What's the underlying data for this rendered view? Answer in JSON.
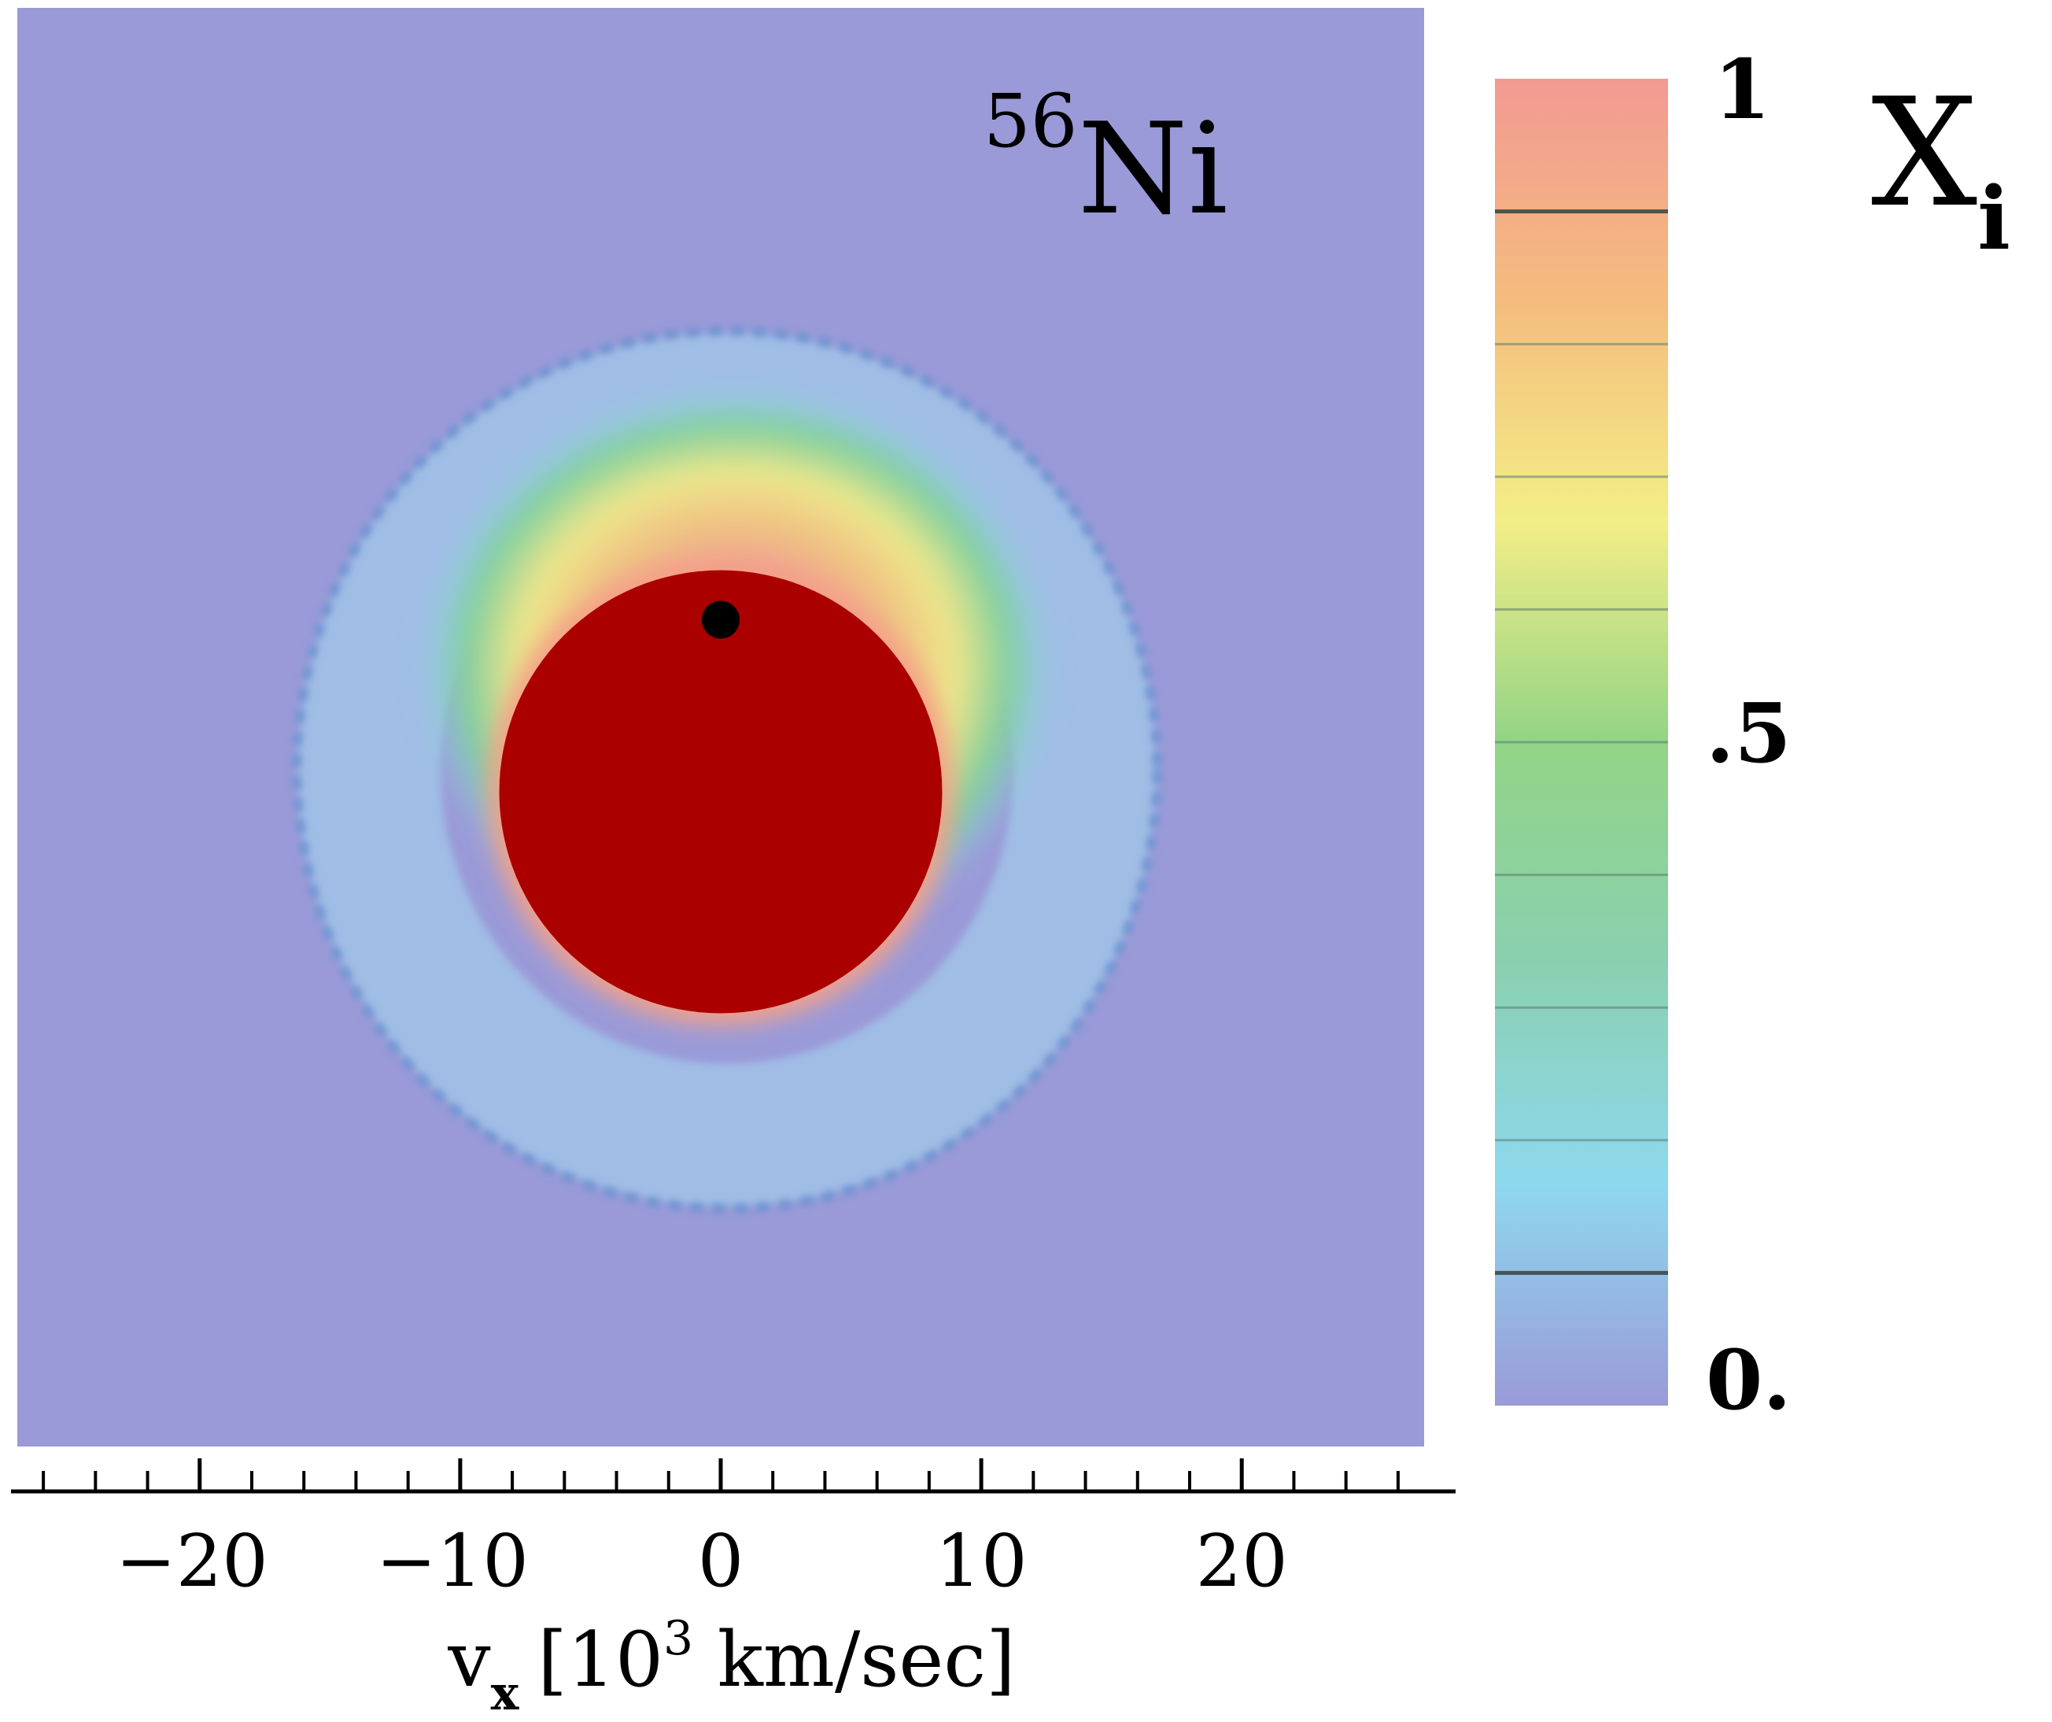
{
  "chart_data": {
    "type": "heatmap",
    "title": "56Ni",
    "title_parts": {
      "superscript": "56",
      "element": "Ni"
    },
    "xlabel": "v",
    "xlabel_parts": {
      "symbol": "v",
      "subscript": "x",
      "open": "[10",
      "exponent": "3",
      "close": " km/sec]"
    },
    "xlim": [
      -27,
      27
    ],
    "x_tick_major_step": 10,
    "x_tick_minor_step": 2,
    "x_tick_values": [
      -20,
      -10,
      0,
      10,
      20
    ],
    "x_tick_labels": [
      "−20",
      "−10",
      "0",
      "10",
      "20"
    ],
    "colorbar": {
      "label": "X",
      "label_subscript": "i",
      "range": [
        0,
        1
      ],
      "tick_values": [
        1,
        0.5,
        0
      ],
      "tick_labels": [
        "1",
        ".5",
        "0."
      ],
      "levels": 10
    },
    "field": {
      "background_value": 0,
      "core": {
        "center": [
          0,
          0
        ],
        "radius": 8.5,
        "value": 1
      },
      "plume": {
        "direction": "up",
        "peak_value": 1
      },
      "shell": {
        "inner_radius": 11,
        "outer_radius": 16.5,
        "value": 0.15
      },
      "marker": {
        "x": 0,
        "y": 6.6
      }
    }
  },
  "colors": {
    "background": "#9a9ad8",
    "core": "#aa0000",
    "marker": "#000000",
    "axis": "#000000",
    "colorbar_stops": [
      "#9a9ad8",
      "#8ed8ee",
      "#8ad0b0",
      "#92d486",
      "#f3ee86",
      "#f4bc7e",
      "#f29a92"
    ]
  }
}
